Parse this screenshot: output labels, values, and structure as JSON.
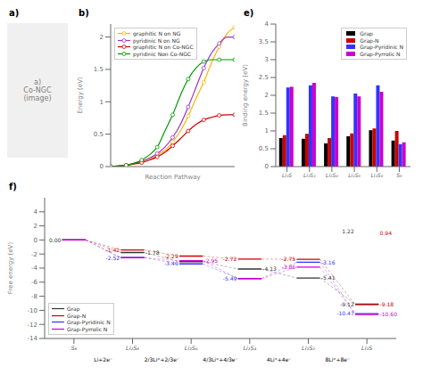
{
  "chart_data": [
    {
      "type": "image",
      "title": "a)",
      "annotations": [
        "a)",
        "Co-NGC",
        "(image)"
      ]
    },
    {
      "type": "line",
      "title": "b)",
      "xlabel": "Reaction Pathway",
      "ylabel": "Energy (eV)",
      "x": [
        0,
        0.5,
        1,
        1.5,
        2,
        2.5,
        3,
        3.5,
        4,
        4.5,
        5,
        5.5,
        6,
        6.5,
        7,
        7.5,
        8
      ],
      "series": [
        {
          "name": "graphitic N on NG",
          "color": "#FFB300",
          "marker": "o",
          "values": [
            0.0,
            0.01,
            0.02,
            0.05,
            0.08,
            0.12,
            0.18,
            0.25,
            0.38,
            0.55,
            0.78,
            1.05,
            1.3,
            1.6,
            1.85,
            2.05,
            2.15
          ]
        },
        {
          "name": "pyridinic N on NG",
          "color": "#9933CC",
          "marker": "o",
          "values": [
            0.0,
            0.01,
            0.02,
            0.05,
            0.08,
            0.13,
            0.2,
            0.3,
            0.45,
            0.65,
            0.92,
            1.22,
            1.52,
            1.75,
            1.9,
            2.0,
            2.0
          ]
        },
        {
          "name": "graphitic N on Co-NGC",
          "color": "#CC0000",
          "marker": "o",
          "values": [
            0.0,
            0.01,
            0.02,
            0.04,
            0.06,
            0.1,
            0.15,
            0.22,
            0.32,
            0.43,
            0.55,
            0.65,
            0.72,
            0.76,
            0.79,
            0.8,
            0.8
          ]
        },
        {
          "name": "pyridinic Non Co-NGC",
          "color": "#009900",
          "marker": "o",
          "values": [
            0.0,
            0.01,
            0.02,
            0.05,
            0.1,
            0.18,
            0.3,
            0.55,
            0.8,
            1.1,
            1.35,
            1.52,
            1.62,
            1.65,
            1.65,
            1.65,
            1.65
          ]
        }
      ],
      "marker_x": [
        0,
        1,
        2,
        3,
        4,
        5,
        6,
        7,
        8
      ],
      "xlim": [
        0,
        8
      ],
      "ylim": [
        0,
        2.2
      ],
      "yticks": [
        0,
        0.5,
        1,
        1.5,
        2
      ],
      "tick_labels": "y",
      "legend": "upper left",
      "grid": false
    },
    {
      "type": "bar",
      "title": "e)",
      "ylabel": "Binding energy (eV)",
      "categories": [
        "Li₂S",
        "Li₂S₂",
        "Li₂S₄",
        "Li₂S₆",
        "Li₂S₈",
        "S₈"
      ],
      "series": [
        {
          "name": "Grap",
          "color": "#000000",
          "values": [
            0.8,
            0.78,
            0.65,
            0.85,
            1.02,
            0.73
          ]
        },
        {
          "name": "Grap-N",
          "color": "#CC0000",
          "values": [
            0.88,
            0.92,
            0.8,
            0.93,
            1.07,
            1.0
          ]
        },
        {
          "name": "Grap-Pyridinic N",
          "color": "#3333FF",
          "values": [
            2.22,
            2.28,
            1.97,
            2.05,
            2.28,
            0.63
          ]
        },
        {
          "name": "Grap-Pyrrolic N",
          "color": "#CC00CC",
          "values": [
            2.24,
            2.35,
            1.95,
            1.97,
            2.1,
            0.68
          ]
        }
      ],
      "ylim": [
        0,
        4
      ],
      "yticks": [
        0,
        0.5,
        1,
        1.5,
        2,
        2.5,
        3,
        3.5,
        4
      ],
      "legend": "upper right",
      "grid": false
    },
    {
      "type": "step",
      "title": "f)",
      "ylabel": "Free energy (eV)",
      "categories": [
        "S₈",
        "Li₂S₈",
        "Li₂S₆",
        "Li₂S₄",
        "Li₂S₂",
        "Li₂S"
      ],
      "series": [
        {
          "name": "Grap",
          "color": "#333333",
          "values": [
            0.0,
            -1.78,
            -3.08,
            -4.13,
            -5.41,
            -9.12
          ]
        },
        {
          "name": "Grap-N",
          "color": "#CC0000",
          "values": [
            0.0,
            -1.42,
            -2.29,
            -2.72,
            -2.75,
            -9.18
          ]
        },
        {
          "name": "Grap-Pyridinic N",
          "color": "#3333FF",
          "values": [
            0.0,
            -2.52,
            -3.4,
            -5.49,
            -3.16,
            -10.47
          ]
        },
        {
          "name": "Grap-Pyrrolic N",
          "color": "#CC00CC",
          "values": [
            0.0,
            -2.52,
            -2.95,
            -5.49,
            -3.86,
            -10.6
          ]
        }
      ],
      "ylim": [
        -14,
        6
      ],
      "yticks": [
        -14,
        -12,
        -10,
        -8,
        -6,
        -4,
        -2,
        0,
        2,
        4
      ],
      "legend": "lower left",
      "grid": false,
      "annotations": [
        {
          "text": "0.00",
          "x": 0,
          "y": 0.0,
          "color": "#333333"
        },
        {
          "text": "-1.42",
          "x": 1,
          "y": -1.42,
          "color": "#CC0000"
        },
        {
          "text": "-1.78",
          "x": 1,
          "y": -1.78,
          "color": "#333333"
        },
        {
          "text": "-2.52",
          "x": 1,
          "y": -2.52,
          "color": "#3333FF"
        },
        {
          "text": "-2.29",
          "x": 2,
          "y": -2.29,
          "color": "#CC0000"
        },
        {
          "text": "-3.40",
          "x": 2,
          "y": -3.4,
          "color": "#3333FF"
        },
        {
          "text": "-2.95",
          "x": 2,
          "y": -2.95,
          "color": "#CC00CC"
        },
        {
          "text": "-2.72",
          "x": 3,
          "y": -2.72,
          "color": "#CC0000"
        },
        {
          "text": "-4.13",
          "x": 3,
          "y": -4.13,
          "color": "#333333"
        },
        {
          "text": "-5.49",
          "x": 3,
          "y": -5.49,
          "color": "#3333FF"
        },
        {
          "text": "-2.75",
          "x": 4,
          "y": -2.75,
          "color": "#CC0000"
        },
        {
          "text": "-3.16",
          "x": 4,
          "y": -3.16,
          "color": "#3333FF"
        },
        {
          "text": "-3.86",
          "x": 4,
          "y": -3.86,
          "color": "#CC00CC"
        },
        {
          "text": "-5.41",
          "x": 4,
          "y": -5.41,
          "color": "#333333"
        },
        {
          "text": "-9.12",
          "x": 5,
          "y": -9.12,
          "color": "#333333"
        },
        {
          "text": "-9.18",
          "x": 5,
          "y": -9.18,
          "color": "#CC0000"
        },
        {
          "text": "-10.47",
          "x": 5,
          "y": -10.47,
          "color": "#3333FF"
        },
        {
          "text": "-10.60",
          "x": 5,
          "y": -10.6,
          "color": "#CC00CC"
        },
        {
          "text": "1.22",
          "x": 5,
          "y": 1.22,
          "color": "#333333"
        },
        {
          "text": "0.94",
          "x": 5,
          "y": 0.94,
          "color": "#CC0000"
        }
      ],
      "step_labels": [
        "Li+2e⁻",
        "2/3Li⁺+2/3e⁻",
        "4/3Li⁺+4/3e⁻",
        "4Li⁺+4e⁻",
        "8Li⁺+8e⁻"
      ]
    }
  ]
}
